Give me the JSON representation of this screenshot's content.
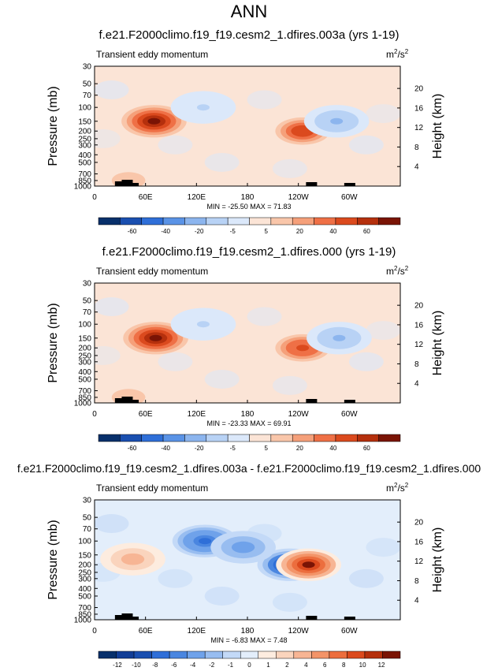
{
  "page": {
    "season": "ANN"
  },
  "panels": [
    {
      "title": "f.e21.F2000climo.f19_f19.cesm2_1.dfires.003a (yrs 1-19)",
      "subtitle": "Transient eddy momentum",
      "units_base": "m",
      "units_exp": "2",
      "units_sep": "/s",
      "units_exp2": "2",
      "minmax": "MIN = -25.50  MAX = 71.83",
      "colorbar": {
        "levels": [
          "-60",
          "-40",
          "-20",
          "-5",
          "5",
          "20",
          "40",
          "60"
        ],
        "colors": [
          "#08306b",
          "#1a4fb0",
          "#2f6fd8",
          "#5a93e6",
          "#8cb5ee",
          "#b8d2f5",
          "#dbe8fa",
          "#fbe4d6",
          "#f9c6aa",
          "#f5a07a",
          "#ef7046",
          "#db4a1e",
          "#b5300d",
          "#7a1405"
        ]
      },
      "features": [
        {
          "name": "jet-core-60E",
          "lon": 70,
          "p": 150,
          "value": 71.83,
          "sign": "pos"
        },
        {
          "name": "jet-core-120W",
          "lon": 245,
          "p": 200,
          "value": 55,
          "sign": "pos"
        },
        {
          "name": "neg-120E",
          "lon": 128,
          "p": 100,
          "value": -12,
          "sign": "neg"
        },
        {
          "name": "neg-60W",
          "lon": 285,
          "p": 150,
          "value": -25.5,
          "sign": "neg"
        },
        {
          "name": "lowlevel-40E",
          "lon": 40,
          "p": 850,
          "value": 20,
          "sign": "pos"
        }
      ]
    },
    {
      "title": "f.e21.F2000climo.f19_f19.cesm2_1.dfires.000 (yrs 1-19)",
      "subtitle": "Transient eddy momentum",
      "units_base": "m",
      "units_exp": "2",
      "units_sep": "/s",
      "units_exp2": "2",
      "minmax": "MIN = -23.33  MAX = 69.91",
      "colorbar": {
        "levels": [
          "-60",
          "-40",
          "-20",
          "-5",
          "5",
          "20",
          "40",
          "60"
        ],
        "colors": [
          "#08306b",
          "#1a4fb0",
          "#2f6fd8",
          "#5a93e6",
          "#8cb5ee",
          "#b8d2f5",
          "#dbe8fa",
          "#fbe4d6",
          "#f9c6aa",
          "#f5a07a",
          "#ef7046",
          "#db4a1e",
          "#b5300d",
          "#7a1405"
        ]
      },
      "features": [
        {
          "name": "jet-core-60E",
          "lon": 72,
          "p": 150,
          "value": 69.91,
          "sign": "pos"
        },
        {
          "name": "jet-core-120W",
          "lon": 245,
          "p": 200,
          "value": 52,
          "sign": "pos"
        },
        {
          "name": "neg-120E",
          "lon": 128,
          "p": 100,
          "value": -12,
          "sign": "neg"
        },
        {
          "name": "neg-60W",
          "lon": 288,
          "p": 150,
          "value": -23.33,
          "sign": "neg"
        },
        {
          "name": "lowlevel-40E",
          "lon": 40,
          "p": 850,
          "value": 20,
          "sign": "pos"
        }
      ]
    },
    {
      "title": "f.e21.F2000climo.f19_f19.cesm2_1.dfires.003a - f.e21.F2000climo.f19_f19.cesm2_1.dfires.000",
      "subtitle": "Transient eddy momentum",
      "units_base": "m",
      "units_exp": "2",
      "units_sep": "/s",
      "units_exp2": "2",
      "minmax": "MIN = -6.83  MAX = 7.48",
      "colorbar": {
        "levels": [
          "-12",
          "-10",
          "-8",
          "-6",
          "-4",
          "-2",
          "-1",
          "0",
          "1",
          "2",
          "4",
          "6",
          "8",
          "10",
          "12"
        ],
        "colors": [
          "#08306b",
          "#123e96",
          "#1a4fb0",
          "#2f6fd8",
          "#4a86e0",
          "#6fa2ea",
          "#98bdf0",
          "#c3d9f7",
          "#e3eefb",
          "#fdecdf",
          "#fad4bd",
          "#f7b594",
          "#f39468",
          "#ec6e3e",
          "#db4a1e",
          "#b5300d",
          "#7a1405"
        ]
      },
      "features": [
        {
          "name": "neg-120E",
          "lon": 130,
          "p": 100,
          "value": -5,
          "sign": "neg"
        },
        {
          "name": "neg-120W",
          "lon": 230,
          "p": 200,
          "value": -6.83,
          "sign": "neg"
        },
        {
          "name": "pos-105W",
          "lon": 252,
          "p": 200,
          "value": 7.48,
          "sign": "pos"
        },
        {
          "name": "pos-40E",
          "lon": 45,
          "p": 170,
          "value": 3,
          "sign": "pos"
        },
        {
          "name": "neg-175E",
          "lon": 175,
          "p": 120,
          "value": -3,
          "sign": "neg"
        }
      ]
    }
  ],
  "chart_data": [
    {
      "type": "heatmap",
      "title": "f.e21.F2000climo.f19_f19.cesm2_1.dfires.003a (yrs 1-19)",
      "subtitle": "Transient eddy momentum",
      "units": "m2/s2",
      "xlabel": "",
      "ylabel": "Pressure (mb)",
      "ylabel_right": "Height (km)",
      "x_ticks": [
        "0",
        "60E",
        "120E",
        "180",
        "120W",
        "60W"
      ],
      "y_ticks": [
        "30",
        "50",
        "70",
        "100",
        "150",
        "200",
        "250",
        "300",
        "400",
        "500",
        "700",
        "850",
        "1000"
      ],
      "y2_ticks": [
        "4",
        "8",
        "12",
        "16",
        "20"
      ],
      "min": -25.5,
      "max": 71.83
    },
    {
      "type": "heatmap",
      "title": "f.e21.F2000climo.f19_f19.cesm2_1.dfires.000 (yrs 1-19)",
      "subtitle": "Transient eddy momentum",
      "units": "m2/s2",
      "xlabel": "",
      "ylabel": "Pressure (mb)",
      "ylabel_right": "Height (km)",
      "x_ticks": [
        "0",
        "60E",
        "120E",
        "180",
        "120W",
        "60W"
      ],
      "y_ticks": [
        "30",
        "50",
        "70",
        "100",
        "150",
        "200",
        "250",
        "300",
        "400",
        "500",
        "700",
        "850",
        "1000"
      ],
      "y2_ticks": [
        "4",
        "8",
        "12",
        "16",
        "20"
      ],
      "min": -23.33,
      "max": 69.91
    },
    {
      "type": "heatmap",
      "title": "f.e21.F2000climo.f19_f19.cesm2_1.dfires.003a - f.e21.F2000climo.f19_f19.cesm2_1.dfires.000",
      "subtitle": "Transient eddy momentum",
      "units": "m2/s2",
      "xlabel": "",
      "ylabel": "Pressure (mb)",
      "ylabel_right": "Height (km)",
      "x_ticks": [
        "0",
        "60E",
        "120E",
        "180",
        "120W",
        "60W"
      ],
      "y_ticks": [
        "30",
        "50",
        "70",
        "100",
        "150",
        "200",
        "250",
        "300",
        "400",
        "500",
        "700",
        "850",
        "1000"
      ],
      "y2_ticks": [
        "4",
        "8",
        "12",
        "16",
        "20"
      ],
      "min": -6.83,
      "max": 7.48
    }
  ]
}
